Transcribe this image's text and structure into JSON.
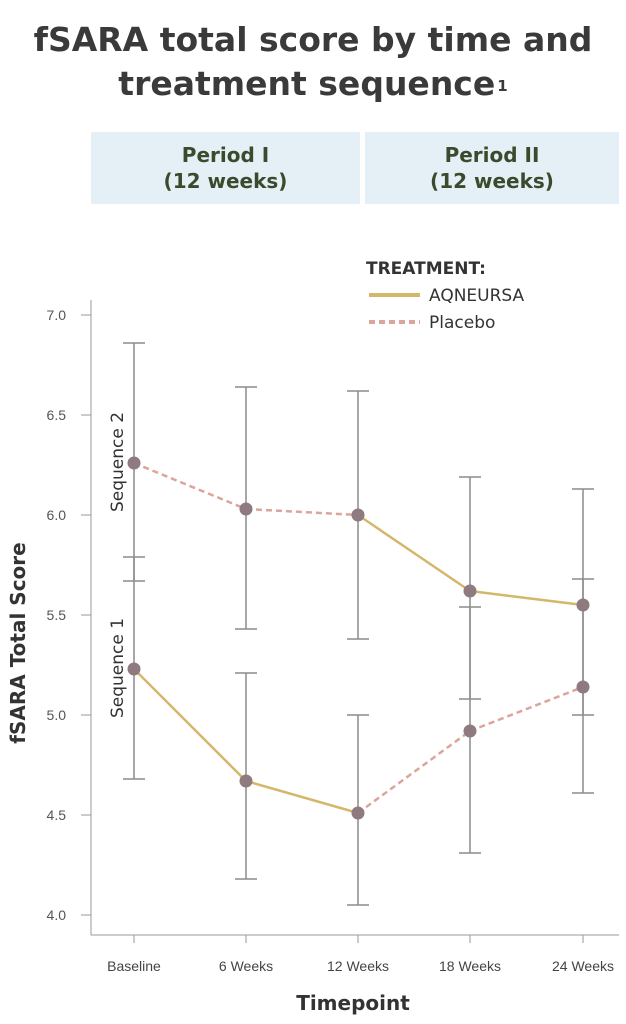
{
  "title": {
    "line1": "fSARA total score by time and",
    "line2": "treatment sequence",
    "superscript": "1"
  },
  "periods": [
    {
      "name": "Period I",
      "duration": "(12 weeks)"
    },
    {
      "name": "Period II",
      "duration": "(12 weeks)"
    }
  ],
  "colors": {
    "aqneursa": "#d4b76a",
    "placebo": "#dca49a",
    "marker": "#8e7a7f",
    "errorbar": "#8c8c8c",
    "axis": "#9a9a9a",
    "period_band": "#e4eff6"
  },
  "chart_data": {
    "type": "line",
    "title": "fSARA total score by time and treatment sequence",
    "xlabel": "Timepoint",
    "ylabel": "fSARA Total Score",
    "categories": [
      "Baseline",
      "6 Weeks",
      "12 Weeks",
      "18 Weeks",
      "24 Weeks"
    ],
    "ylim": [
      4.0,
      7.0
    ],
    "yticks": [
      "4.0",
      "4.5",
      "5.0",
      "5.5",
      "6.0",
      "6.5",
      "7.0"
    ],
    "legend": {
      "title": "TREATMENT:",
      "entries": [
        {
          "label": "AQNEURSA",
          "style": "solid"
        },
        {
          "label": "Placebo",
          "style": "dashed"
        }
      ]
    },
    "series": [
      {
        "name": "Sequence 2",
        "values": [
          6.26,
          6.03,
          6.0,
          5.62,
          5.55
        ],
        "err_low": [
          5.67,
          5.43,
          5.38,
          5.08,
          5.0
        ],
        "err_high": [
          6.86,
          6.64,
          6.62,
          6.19,
          6.13
        ],
        "segment_treatments": [
          "Placebo",
          "Placebo",
          "AQNEURSA",
          "AQNEURSA"
        ]
      },
      {
        "name": "Sequence 1",
        "values": [
          5.23,
          4.67,
          4.51,
          4.92,
          5.14
        ],
        "err_low": [
          4.68,
          4.18,
          4.05,
          4.31,
          4.61
        ],
        "err_high": [
          5.79,
          5.21,
          5.0,
          5.54,
          5.68
        ],
        "segment_treatments": [
          "AQNEURSA",
          "AQNEURSA",
          "Placebo",
          "Placebo"
        ]
      }
    ]
  }
}
